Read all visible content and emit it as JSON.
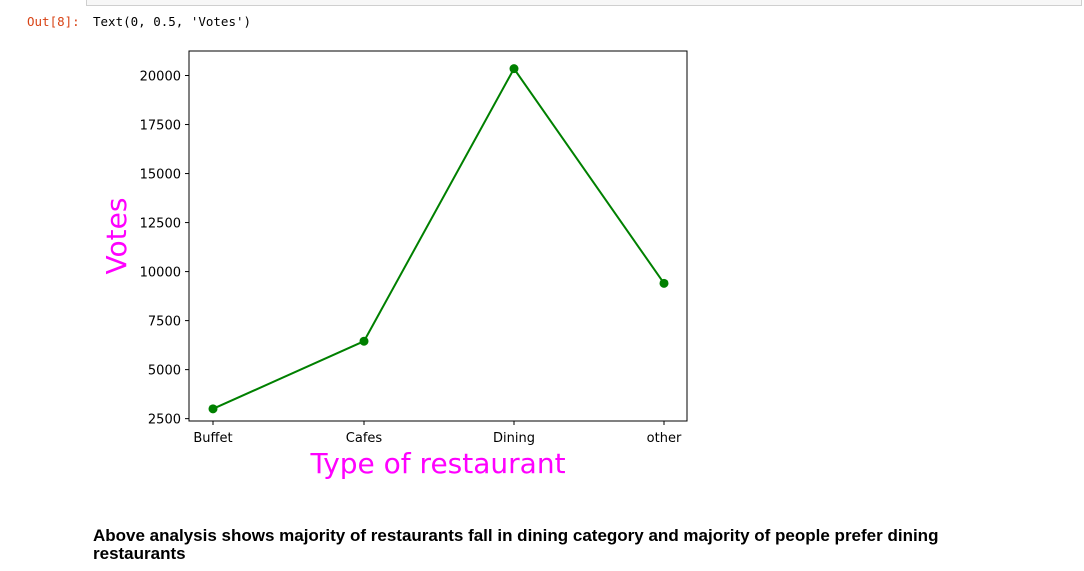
{
  "notebook": {
    "out_prompt": "Out[8]:",
    "out_text": "Text(0, 0.5, 'Votes')",
    "markdown": "Above analysis shows majority of restaurants fall in dining category and majority of people prefer dining restaurants"
  },
  "chart_data": {
    "type": "line",
    "categories": [
      "Buffet",
      "Cafes",
      "Dining",
      "other"
    ],
    "values": [
      3000,
      6450,
      20350,
      9400
    ],
    "xlabel": "Type of restaurant",
    "ylabel": "Votes",
    "yticks": [
      "2500",
      "5000",
      "7500",
      "10000",
      "12500",
      "15000",
      "17500",
      "20000"
    ],
    "ylim": [
      2380,
      21250
    ],
    "line_color": "#008000",
    "label_color": "#ff00ff",
    "marker": "circle",
    "grid": false
  }
}
